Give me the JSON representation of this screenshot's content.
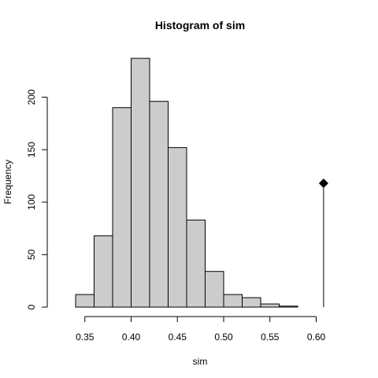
{
  "chart_data": {
    "type": "bar",
    "title": "Histogram of sim",
    "xlabel": "sim",
    "ylabel": "Frequency",
    "xlim": [
      0.33,
      0.62
    ],
    "ylim": [
      0,
      240
    ],
    "bins": [
      {
        "x0": 0.34,
        "x1": 0.36,
        "count": 12
      },
      {
        "x0": 0.36,
        "x1": 0.38,
        "count": 68
      },
      {
        "x0": 0.38,
        "x1": 0.4,
        "count": 190
      },
      {
        "x0": 0.4,
        "x1": 0.42,
        "count": 237
      },
      {
        "x0": 0.42,
        "x1": 0.44,
        "count": 196
      },
      {
        "x0": 0.44,
        "x1": 0.46,
        "count": 152
      },
      {
        "x0": 0.46,
        "x1": 0.48,
        "count": 83
      },
      {
        "x0": 0.48,
        "x1": 0.5,
        "count": 34
      },
      {
        "x0": 0.5,
        "x1": 0.52,
        "count": 12
      },
      {
        "x0": 0.52,
        "x1": 0.54,
        "count": 9
      },
      {
        "x0": 0.54,
        "x1": 0.56,
        "count": 3
      },
      {
        "x0": 0.56,
        "x1": 0.58,
        "count": 1
      }
    ],
    "x_ticks": [
      0.35,
      0.4,
      0.45,
      0.5,
      0.55,
      0.6
    ],
    "x_tick_labels": [
      "0.35",
      "0.40",
      "0.45",
      "0.50",
      "0.55",
      "0.60"
    ],
    "y_ticks": [
      0,
      50,
      100,
      150,
      200
    ],
    "y_tick_labels": [
      "0",
      "50",
      "100",
      "150",
      "200"
    ],
    "observed": {
      "x": 0.608,
      "y": 118
    },
    "bar_fill": "#cccccc",
    "bar_stroke": "#000000",
    "grid": false
  }
}
